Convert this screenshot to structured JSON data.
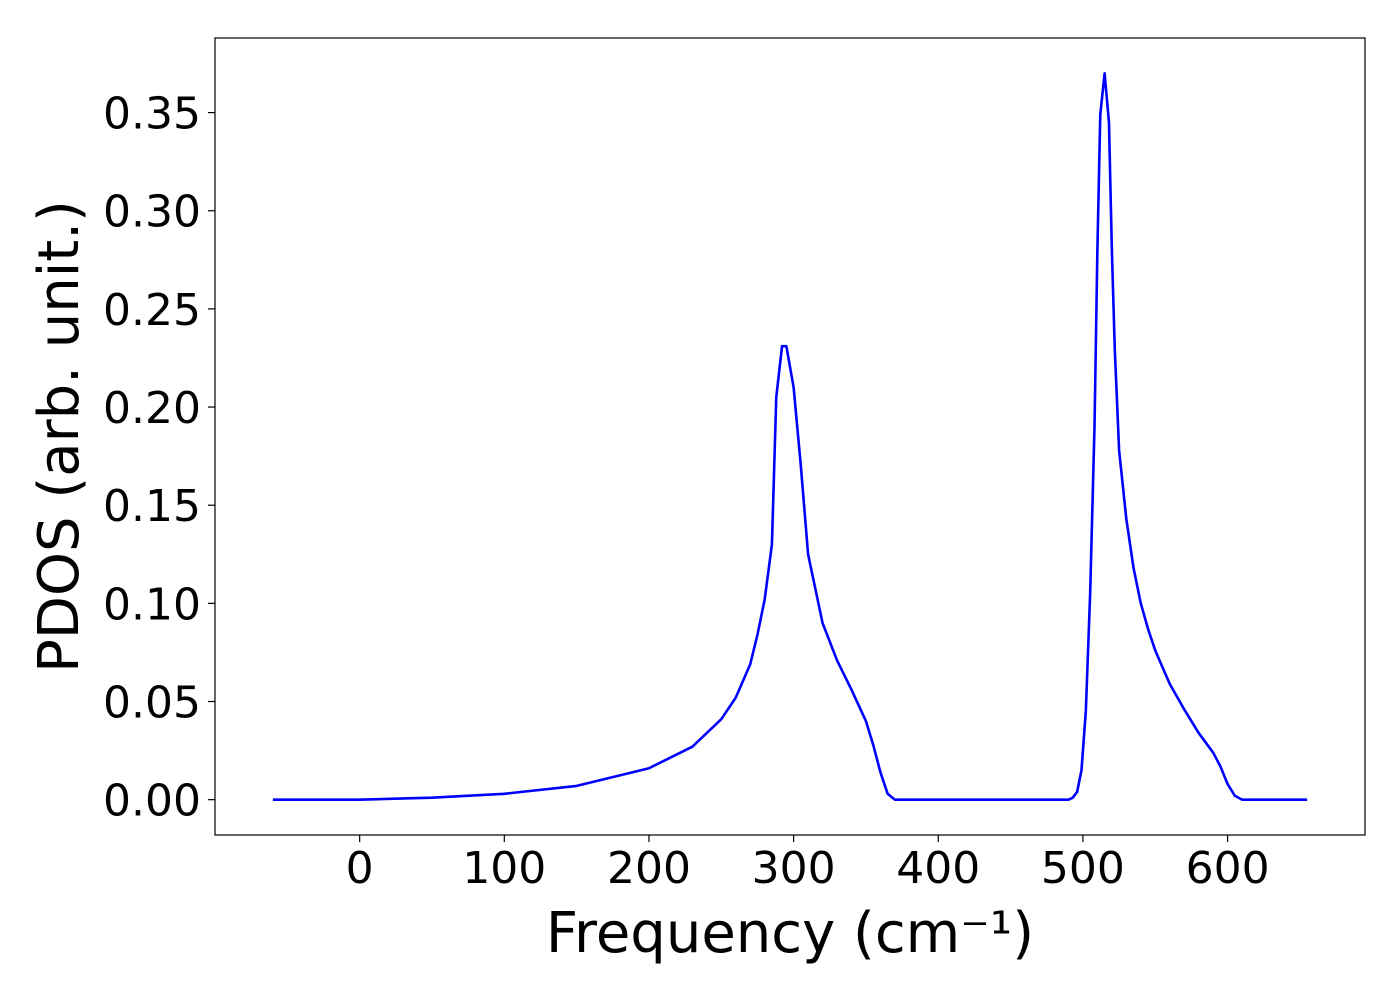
{
  "chart_data": {
    "type": "line",
    "title": "",
    "xlabel": "Frequency (cm⁻¹)",
    "ylabel": "PDOS (arb. unit.)",
    "xlim": [
      -100,
      695
    ],
    "ylim": [
      -0.018,
      0.388
    ],
    "xticks": [
      0,
      100,
      200,
      300,
      400,
      500,
      600
    ],
    "yticks": [
      0.0,
      0.05,
      0.1,
      0.15,
      0.2,
      0.25,
      0.3,
      0.35
    ],
    "ytick_labels": [
      "0.00",
      "0.05",
      "0.10",
      "0.15",
      "0.20",
      "0.25",
      "0.30",
      "0.35"
    ],
    "grid": false,
    "series": [
      {
        "color": "#0000ff",
        "x": [
          -60,
          0,
          50,
          100,
          150,
          200,
          230,
          250,
          260,
          270,
          275,
          280,
          285,
          288,
          292,
          295,
          300,
          305,
          310,
          320,
          330,
          340,
          345,
          350,
          355,
          360,
          365,
          370,
          400,
          450,
          480,
          490,
          493,
          496,
          499,
          502,
          505,
          508,
          510,
          512,
          515,
          518,
          520,
          522,
          525,
          530,
          535,
          540,
          545,
          550,
          560,
          570,
          580,
          590,
          595,
          600,
          605,
          610,
          620,
          655
        ],
        "y": [
          0.0,
          0.0,
          0.001,
          0.003,
          0.007,
          0.016,
          0.027,
          0.041,
          0.052,
          0.069,
          0.084,
          0.102,
          0.13,
          0.205,
          0.231,
          0.231,
          0.21,
          0.17,
          0.125,
          0.09,
          0.071,
          0.056,
          0.048,
          0.04,
          0.028,
          0.014,
          0.003,
          0.0,
          0.0,
          0.0,
          0.0,
          0.0,
          0.001,
          0.004,
          0.015,
          0.045,
          0.105,
          0.19,
          0.28,
          0.349,
          0.37,
          0.345,
          0.28,
          0.23,
          0.178,
          0.143,
          0.118,
          0.1,
          0.087,
          0.076,
          0.059,
          0.046,
          0.034,
          0.024,
          0.017,
          0.008,
          0.002,
          0.0,
          0.0,
          0.0
        ]
      }
    ]
  }
}
